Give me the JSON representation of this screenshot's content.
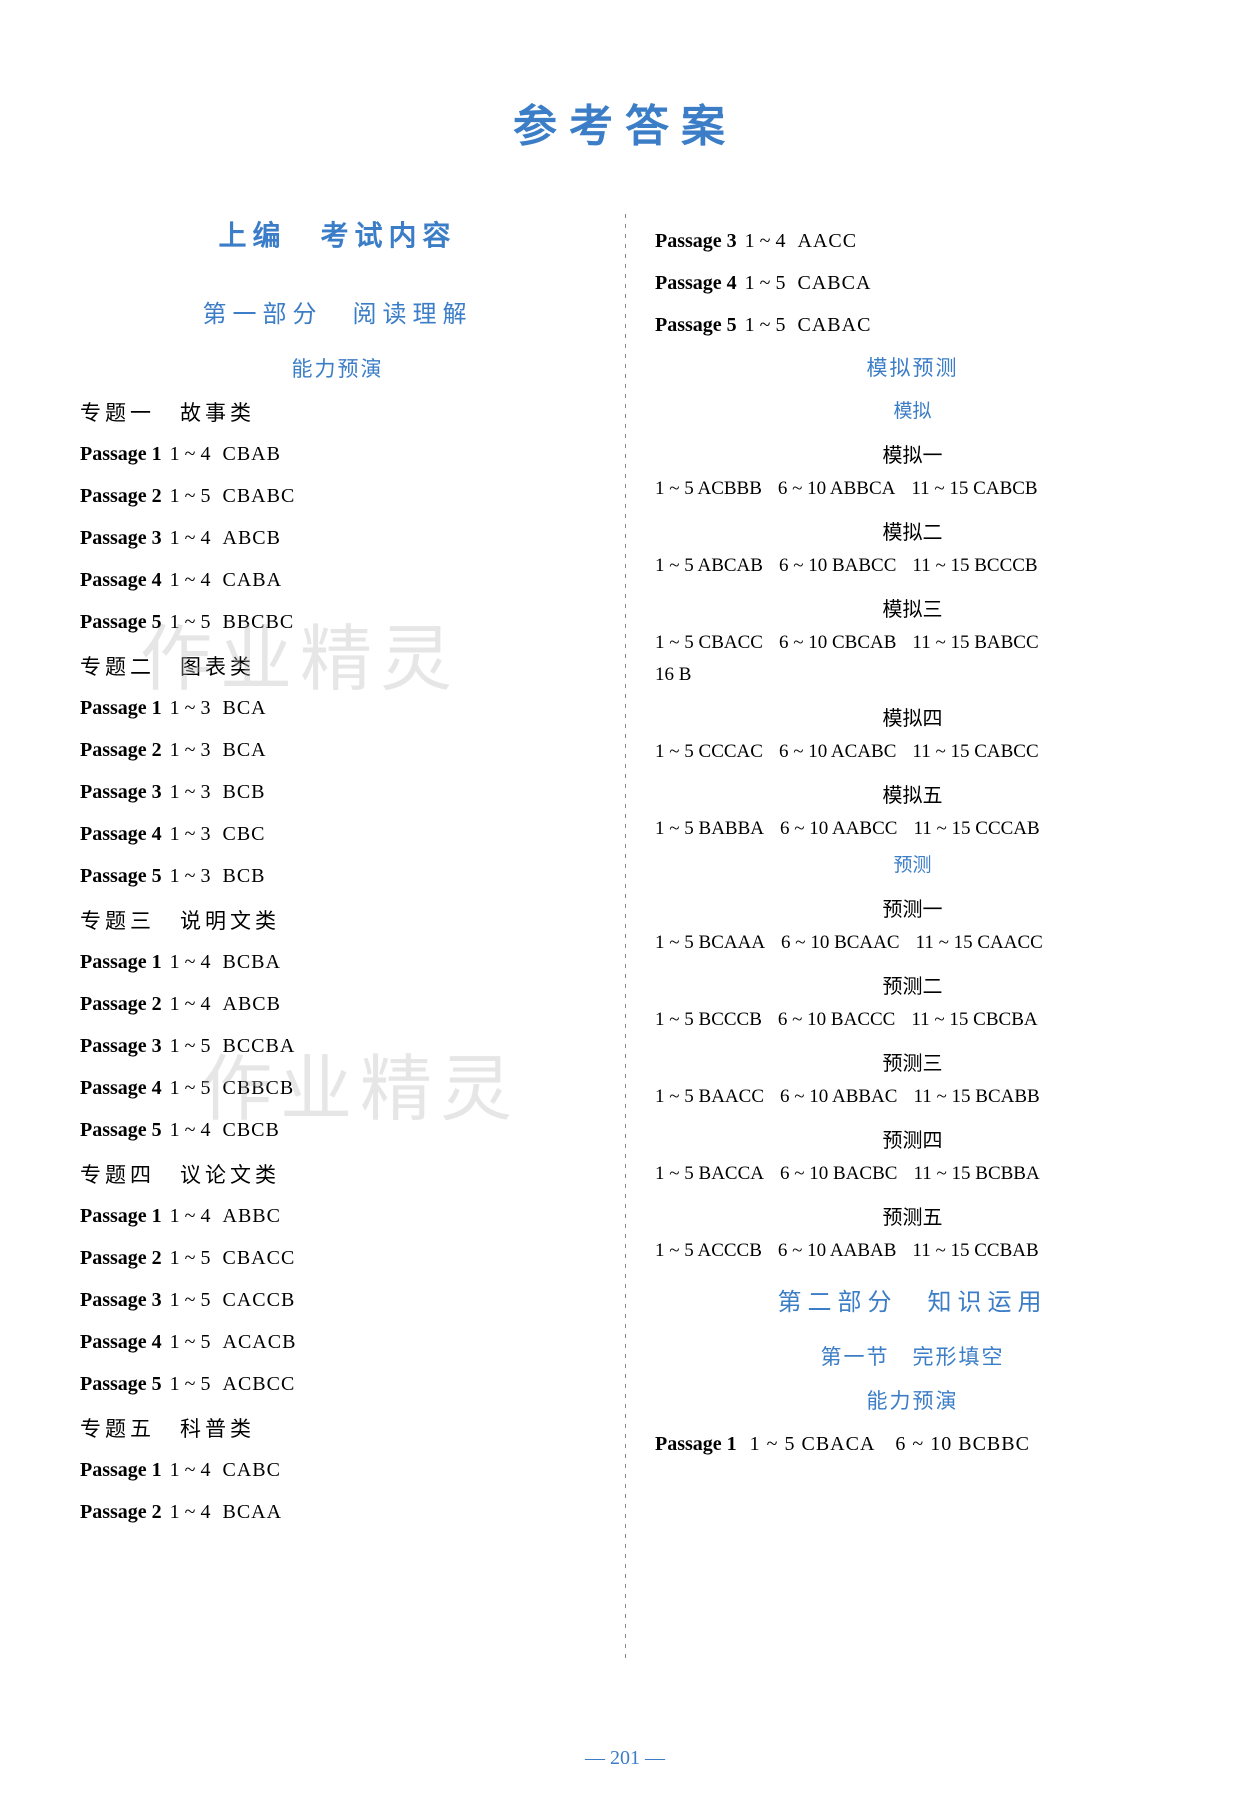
{
  "main_title": "参考答案",
  "page_number": "— 201 —",
  "watermark_text": "作业精灵",
  "left": {
    "section_title": "上编　考试内容",
    "part_title": "第一部分　阅读理解",
    "sub_title": "能力预演",
    "topics": [
      {
        "heading": "专题一　故事类",
        "passages": [
          {
            "label": "Passage 1",
            "range": "1 ~ 4",
            "answers": "CBAB"
          },
          {
            "label": "Passage 2",
            "range": "1 ~ 5",
            "answers": "CBABC"
          },
          {
            "label": "Passage 3",
            "range": "1 ~ 4",
            "answers": "ABCB"
          },
          {
            "label": "Passage 4",
            "range": "1 ~ 4",
            "answers": "CABA"
          },
          {
            "label": "Passage 5",
            "range": "1 ~ 5",
            "answers": "BBCBC"
          }
        ]
      },
      {
        "heading": "专题二　图表类",
        "passages": [
          {
            "label": "Passage 1",
            "range": "1 ~ 3",
            "answers": "BCA"
          },
          {
            "label": "Passage 2",
            "range": "1 ~ 3",
            "answers": "BCA"
          },
          {
            "label": "Passage 3",
            "range": "1 ~ 3",
            "answers": "BCB"
          },
          {
            "label": "Passage 4",
            "range": "1 ~ 3",
            "answers": "CBC"
          },
          {
            "label": "Passage 5",
            "range": "1 ~ 3",
            "answers": "BCB"
          }
        ]
      },
      {
        "heading": "专题三　说明文类",
        "passages": [
          {
            "label": "Passage 1",
            "range": "1 ~ 4",
            "answers": "BCBA"
          },
          {
            "label": "Passage 2",
            "range": "1 ~ 4",
            "answers": "ABCB"
          },
          {
            "label": "Passage 3",
            "range": "1 ~ 5",
            "answers": "BCCBA"
          },
          {
            "label": "Passage 4",
            "range": "1 ~ 5",
            "answers": "CBBCB"
          },
          {
            "label": "Passage 5",
            "range": "1 ~ 4",
            "answers": "CBCB"
          }
        ]
      },
      {
        "heading": "专题四　议论文类",
        "passages": [
          {
            "label": "Passage 1",
            "range": "1 ~ 4",
            "answers": "ABBC"
          },
          {
            "label": "Passage 2",
            "range": "1 ~ 5",
            "answers": "CBACC"
          },
          {
            "label": "Passage 3",
            "range": "1 ~ 5",
            "answers": "CACCB"
          },
          {
            "label": "Passage 4",
            "range": "1 ~ 5",
            "answers": "ACACB"
          },
          {
            "label": "Passage 5",
            "range": "1 ~ 5",
            "answers": "ACBCC"
          }
        ]
      },
      {
        "heading": "专题五　科普类",
        "passages": [
          {
            "label": "Passage 1",
            "range": "1 ~ 4",
            "answers": "CABC"
          },
          {
            "label": "Passage 2",
            "range": "1 ~ 4",
            "answers": "BCAA"
          }
        ]
      }
    ]
  },
  "right": {
    "top_passages": [
      {
        "label": "Passage 3",
        "range": "1 ~ 4",
        "answers": "AACC"
      },
      {
        "label": "Passage 4",
        "range": "1 ~ 5",
        "answers": "CABCA"
      },
      {
        "label": "Passage 5",
        "range": "1 ~ 5",
        "answers": "CABAC"
      }
    ],
    "mock_section_title": "模拟预测",
    "mock_sub_title": "模拟",
    "mocks": [
      {
        "heading": "模拟一",
        "lines": [
          {
            "g1": "1 ~ 5 ACBBB",
            "g2": "6 ~ 10 ABBCA",
            "g3": "11 ~ 15 CABCB"
          }
        ]
      },
      {
        "heading": "模拟二",
        "lines": [
          {
            "g1": "1 ~ 5 ABCAB",
            "g2": "6 ~ 10 BABCC",
            "g3": "11 ~ 15 BCCCB"
          }
        ]
      },
      {
        "heading": "模拟三",
        "lines": [
          {
            "g1": "1 ~ 5 CBACC",
            "g2": "6 ~ 10 CBCAB",
            "g3": "11 ~ 15 BABCC"
          }
        ],
        "extra": "16 B"
      },
      {
        "heading": "模拟四",
        "lines": [
          {
            "g1": "1 ~ 5 CCCAC",
            "g2": "6 ~ 10 ACABC",
            "g3": "11 ~ 15 CABCC"
          }
        ]
      },
      {
        "heading": "模拟五",
        "lines": [
          {
            "g1": "1 ~ 5 BABBA",
            "g2": "6 ~ 10 AABCC",
            "g3": "11 ~ 15 CCCAB"
          }
        ]
      }
    ],
    "predict_sub_title": "预测",
    "predicts": [
      {
        "heading": "预测一",
        "lines": [
          {
            "g1": "1 ~ 5 BCAAA",
            "g2": "6 ~ 10 BCAAC",
            "g3": "11 ~ 15 CAACC"
          }
        ]
      },
      {
        "heading": "预测二",
        "lines": [
          {
            "g1": "1 ~ 5 BCCCB",
            "g2": "6 ~ 10 BACCC",
            "g3": "11 ~ 15 CBCBA"
          }
        ]
      },
      {
        "heading": "预测三",
        "lines": [
          {
            "g1": "1 ~ 5 BAACC",
            "g2": "6 ~ 10 ABBAC",
            "g3": "11 ~ 15 BCABB"
          }
        ]
      },
      {
        "heading": "预测四",
        "lines": [
          {
            "g1": "1 ~ 5 BACCA",
            "g2": "6 ~ 10 BACBC",
            "g3": "11 ~ 15 BCBBA"
          }
        ]
      },
      {
        "heading": "预测五",
        "lines": [
          {
            "g1": "1 ~ 5 ACCCB",
            "g2": "6 ~ 10 AABAB",
            "g3": "11 ~ 15 CCBAB"
          }
        ]
      }
    ],
    "part2_title": "第二部分　知识运用",
    "section2_title": "第一节　完形填空",
    "sub_title2": "能力预演",
    "bottom_passage": {
      "label": "Passage 1",
      "g1": "1 ~ 5 CBACA",
      "g2": "6 ~ 10 BCBBC"
    }
  }
}
